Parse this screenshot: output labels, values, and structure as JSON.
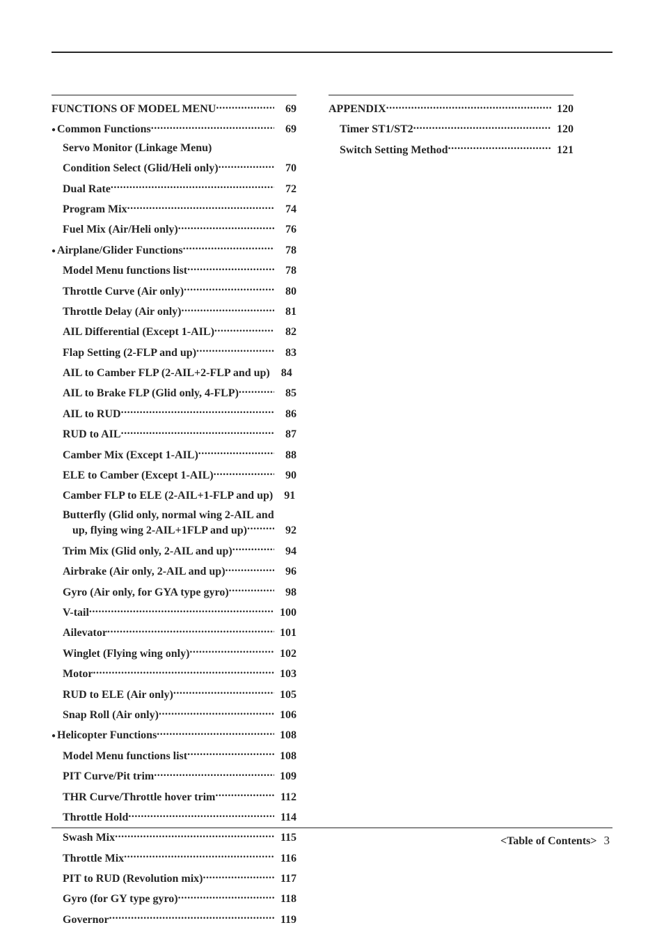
{
  "footer": {
    "label": "<Table of Contents>",
    "page": "3"
  },
  "left": {
    "header": {
      "label": "FUNCTIONS OF MODEL MENU",
      "page": "69"
    },
    "sections": [
      {
        "bullet": {
          "label": "Common Functions",
          "page": "69"
        },
        "items": [
          {
            "label": "Servo Monitor (Linkage Menu)",
            "no_page": true
          },
          {
            "label": "Condition Select (Glid/Heli only)",
            "page": "70"
          },
          {
            "label": "Dual Rate",
            "page": "72"
          },
          {
            "label": "Program Mix",
            "page": "74"
          },
          {
            "label": "Fuel Mix (Air/Heli only)",
            "page": "76"
          }
        ]
      },
      {
        "bullet": {
          "label": "Airplane/Glider Functions",
          "page": "78"
        },
        "items": [
          {
            "label": "Model Menu functions list",
            "page": "78"
          },
          {
            "label": "Throttle Curve (Air only)",
            "page": "80"
          },
          {
            "label": "Throttle Delay (Air only)",
            "page": "81"
          },
          {
            "label": "AIL Differential (Except 1-AIL)",
            "page": "82"
          },
          {
            "label": "Flap Setting (2-FLP and up)",
            "page": "83"
          },
          {
            "label": "AIL to Camber FLP (2-AIL+2-FLP and up)",
            "page": "84",
            "no_leader": true
          },
          {
            "label": "AIL to Brake FLP (Glid only, 4-FLP)",
            "page": "85"
          },
          {
            "label": "AIL to RUD",
            "page": "86"
          },
          {
            "label": "RUD to AIL",
            "page": "87"
          },
          {
            "label": "Camber Mix (Except 1-AIL)",
            "page": "88"
          },
          {
            "label": "ELE to Camber (Except 1-AIL)",
            "page": "90"
          },
          {
            "label": "Camber FLP to ELE (2-AIL+1-FLP and up)",
            "page": "91",
            "no_leader": true
          },
          {
            "wrap": true,
            "line1": "Butterfly (Glid only, normal wing 2-AIL and",
            "line2": "up, flying wing 2-AIL+1FLP and up)",
            "page": "92"
          },
          {
            "label": "Trim Mix (Glid only, 2-AIL and up)",
            "page": "94"
          },
          {
            "label": "Airbrake (Air only, 2-AIL and up)",
            "page": "96"
          },
          {
            "label": "Gyro (Air only, for GYA type gyro)",
            "page": "98"
          },
          {
            "label": "V-tail",
            "page": "100"
          },
          {
            "label": "Ailevator",
            "page": "101"
          },
          {
            "label": "Winglet (Flying wing only)",
            "page": "102"
          },
          {
            "label": "Motor",
            "page": "103"
          },
          {
            "label": "RUD to ELE (Air only)",
            "page": "105"
          },
          {
            "label": "Snap Roll (Air only)",
            "page": "106"
          }
        ]
      },
      {
        "bullet": {
          "label": "Helicopter Functions",
          "page": "108"
        },
        "items": [
          {
            "label": "Model Menu functions list",
            "page": "108"
          },
          {
            "label": "PIT Curve/Pit trim",
            "page": "109"
          },
          {
            "label": "THR Curve/Throttle hover trim",
            "page": "112"
          },
          {
            "label": "Throttle Hold",
            "page": "114"
          },
          {
            "label": "Swash Mix",
            "page": "115"
          },
          {
            "label": "Throttle Mix",
            "page": "116"
          },
          {
            "label": "PIT to RUD (Revolution mix)",
            "page": "117"
          },
          {
            "label": "Gyro (for GY type gyro)",
            "page": "118"
          },
          {
            "label": "Governor",
            "page": "119"
          }
        ]
      }
    ]
  },
  "right": {
    "header": {
      "label": "APPENDIX",
      "page": "120"
    },
    "items": [
      {
        "label": "Timer ST1/ST2",
        "page": "120"
      },
      {
        "label": "Switch Setting Method",
        "page": "121"
      }
    ]
  }
}
